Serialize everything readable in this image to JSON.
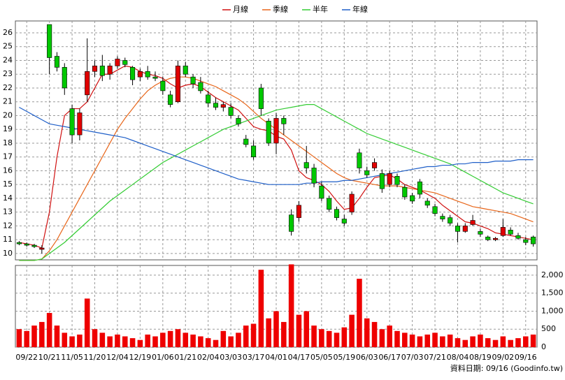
{
  "chart_data": {
    "type": "candlestick",
    "categories": [
      null,
      "09/22",
      null,
      null,
      "10/21",
      null,
      null,
      "11/05",
      null,
      null,
      "11/20",
      null,
      null,
      "12/04",
      null,
      null,
      "12/19",
      null,
      null,
      "01/06",
      null,
      null,
      "01/21",
      null,
      null,
      "02/04",
      null,
      null,
      "03/03",
      null,
      null,
      "03/17",
      null,
      null,
      "04/01",
      null,
      null,
      "04/17",
      null,
      null,
      "05/05",
      null,
      null,
      "05/19",
      null,
      null,
      "06/03",
      null,
      null,
      "06/17",
      null,
      null,
      "07/03",
      null,
      null,
      "07/21",
      null,
      null,
      "08/04",
      null,
      null,
      "08/19",
      null,
      null,
      "09/02",
      null,
      null,
      "09/16",
      null
    ],
    "open": [
      10.8,
      10.7,
      10.6,
      10.3,
      26.6,
      24.3,
      23.5,
      20.5,
      18.6,
      21.5,
      23.2,
      23.6,
      23.0,
      23.6,
      24.0,
      23.5,
      22.8,
      23.2,
      22.8,
      22.5,
      21.5,
      21.0,
      23.6,
      22.8,
      22.4,
      21.5,
      20.9,
      20.6,
      20.6,
      19.8,
      18.3,
      17.8,
      22.0,
      19.6,
      18.0,
      19.8,
      12.8,
      12.6,
      16.6,
      16.2,
      14.9,
      14.0,
      13.2,
      12.5,
      13.0,
      17.3,
      16.0,
      16.2,
      15.8,
      15.0,
      15.6,
      14.8,
      14.2,
      15.2,
      13.8,
      13.4,
      12.7,
      12.6,
      12.0,
      11.6,
      12.1,
      11.6,
      11.2,
      11.0,
      11.3,
      11.7,
      11.3,
      11.0,
      11.2
    ],
    "high": [
      10.9,
      10.8,
      10.7,
      10.6,
      26.6,
      24.6,
      23.8,
      20.8,
      20.5,
      25.6,
      24.0,
      24.4,
      23.8,
      24.3,
      24.2,
      23.6,
      23.4,
      23.6,
      23.2,
      22.8,
      21.8,
      24.0,
      23.9,
      23.0,
      22.8,
      21.8,
      21.3,
      21.0,
      20.9,
      20.0,
      18.6,
      18.2,
      22.3,
      19.8,
      20.2,
      20.0,
      13.2,
      13.8,
      17.8,
      16.5,
      15.2,
      14.2,
      13.4,
      12.8,
      14.5,
      17.6,
      16.3,
      16.9,
      16.1,
      16.0,
      15.8,
      15.0,
      14.4,
      15.4,
      14.0,
      13.6,
      12.9,
      12.8,
      12.2,
      12.2,
      12.8,
      11.8,
      11.3,
      11.2,
      12.5,
      11.9,
      11.5,
      11.2,
      11.3
    ],
    "low": [
      10.6,
      10.5,
      10.4,
      10.0,
      23.0,
      23.2,
      21.5,
      18.0,
      18.2,
      21.0,
      22.8,
      22.5,
      22.6,
      23.4,
      23.5,
      22.2,
      22.5,
      22.6,
      22.5,
      21.5,
      20.6,
      20.9,
      22.8,
      22.0,
      21.6,
      20.6,
      20.4,
      20.3,
      19.8,
      19.2,
      17.7,
      16.8,
      20.0,
      17.8,
      17.2,
      18.6,
      11.3,
      12.3,
      15.8,
      14.8,
      13.8,
      13.0,
      12.4,
      12.0,
      12.8,
      15.8,
      15.5,
      16.0,
      14.4,
      14.8,
      14.8,
      13.9,
      13.6,
      14.0,
      13.3,
      12.7,
      12.3,
      12.0,
      10.8,
      11.5,
      12.0,
      11.2,
      10.9,
      10.9,
      11.2,
      11.3,
      11.0,
      10.6,
      10.5
    ],
    "close": [
      10.7,
      10.6,
      10.5,
      10.4,
      24.2,
      23.5,
      22.0,
      18.6,
      20.2,
      23.2,
      23.6,
      22.9,
      23.6,
      24.1,
      23.7,
      22.6,
      23.2,
      22.8,
      22.7,
      21.8,
      20.8,
      23.6,
      23.0,
      22.3,
      21.8,
      20.9,
      20.6,
      20.8,
      20.0,
      19.4,
      17.9,
      17.0,
      20.5,
      18.0,
      19.8,
      19.4,
      11.6,
      13.5,
      16.2,
      15.1,
      14.0,
      13.2,
      12.6,
      12.2,
      14.3,
      16.2,
      15.7,
      16.6,
      14.7,
      15.8,
      15.0,
      14.1,
      13.8,
      14.3,
      13.5,
      12.9,
      12.5,
      12.2,
      11.6,
      12.0,
      12.4,
      11.4,
      11.0,
      11.1,
      11.9,
      11.4,
      11.1,
      10.8,
      10.7
    ],
    "up_color": "#e00000",
    "down_color": "#00c800",
    "series": [
      {
        "name": "月線",
        "color": "#d01010",
        "values": [
          10.8,
          10.7,
          10.6,
          10.4,
          13,
          17,
          20,
          20.5,
          20.5,
          21,
          22,
          23,
          23,
          23.3,
          23.6,
          23.5,
          23.2,
          23,
          22.9,
          22.7,
          22.3,
          22,
          22.2,
          22.3,
          22.1,
          21.7,
          21.3,
          21,
          20.7,
          20.4,
          19.8,
          19.2,
          19,
          18.9,
          18.5,
          18.3,
          17.5,
          16,
          15.5,
          15.3,
          15,
          14.5,
          13.8,
          13.2,
          13.3,
          14,
          14.8,
          15.5,
          15.6,
          15.7,
          15.4,
          15,
          14.8,
          14.6,
          14.3,
          14,
          13.5,
          13.1,
          12.7,
          12.3,
          12.2,
          12,
          11.8,
          11.5,
          11.4,
          11.3,
          11.2,
          11.1,
          11.0
        ]
      },
      {
        "name": "季線",
        "color": "#e8661a",
        "values": [
          9.5,
          9.5,
          9.5,
          9.6,
          10.2,
          11,
          12,
          13,
          14,
          15,
          16,
          17,
          18,
          19,
          19.8,
          20.5,
          21.2,
          21.8,
          22.2,
          22.5,
          22.7,
          22.8,
          22.8,
          22.7,
          22.5,
          22.3,
          22.1,
          21.8,
          21.5,
          21.2,
          20.8,
          20.3,
          19.8,
          19.4,
          19,
          18.6,
          18.2,
          17.8,
          17.4,
          17,
          16.6,
          16.2,
          15.8,
          15.5,
          15.3,
          15.2,
          15.1,
          15,
          14.9,
          14.9,
          14.9,
          14.8,
          14.7,
          14.6,
          14.5,
          14.4,
          14.2,
          14,
          13.8,
          13.6,
          13.4,
          13.3,
          13.2,
          13.1,
          13,
          12.9,
          12.7,
          12.5,
          12.3
        ]
      },
      {
        "name": "半年",
        "color": "#33cc33",
        "values": [
          9.5,
          9.5,
          9.5,
          9.6,
          10.0,
          10.4,
          10.8,
          11.3,
          11.8,
          12.3,
          12.8,
          13.3,
          13.8,
          14.2,
          14.6,
          15.0,
          15.4,
          15.8,
          16.2,
          16.6,
          16.9,
          17.2,
          17.5,
          17.8,
          18.1,
          18.4,
          18.7,
          19.0,
          19.2,
          19.4,
          19.6,
          19.8,
          20.0,
          20.2,
          20.4,
          20.5,
          20.6,
          20.7,
          20.8,
          20.8,
          20.5,
          20.2,
          19.9,
          19.6,
          19.3,
          19.0,
          18.7,
          18.5,
          18.3,
          18.1,
          17.9,
          17.7,
          17.5,
          17.3,
          17.1,
          16.9,
          16.7,
          16.5,
          16.2,
          15.9,
          15.6,
          15.3,
          15.0,
          14.7,
          14.4,
          14.2,
          14.0,
          13.8,
          13.6
        ]
      },
      {
        "name": "年線",
        "color": "#1f5fc8",
        "values": [
          20.6,
          20.3,
          20.0,
          19.7,
          19.4,
          19.3,
          19.2,
          19.1,
          19.0,
          18.9,
          18.8,
          18.7,
          18.6,
          18.5,
          18.4,
          18.2,
          18.0,
          17.8,
          17.6,
          17.4,
          17.2,
          17.0,
          16.8,
          16.6,
          16.4,
          16.2,
          16.0,
          15.8,
          15.6,
          15.4,
          15.3,
          15.2,
          15.1,
          15.0,
          15.0,
          15.0,
          15.0,
          15.0,
          15.1,
          15.1,
          15.2,
          15.2,
          15.2,
          15.3,
          15.3,
          15.4,
          15.5,
          15.6,
          15.7,
          15.8,
          15.9,
          16.0,
          16.1,
          16.2,
          16.3,
          16.3,
          16.4,
          16.4,
          16.5,
          16.5,
          16.6,
          16.6,
          16.6,
          16.7,
          16.7,
          16.7,
          16.8,
          16.8,
          16.8
        ]
      }
    ],
    "ylim": [
      9.54,
      26.86
    ],
    "yticks": [
      10,
      11,
      12,
      13,
      14,
      15,
      16,
      17,
      18,
      19,
      20,
      21,
      22,
      23,
      24,
      25,
      26
    ],
    "grid": true,
    "volume": {
      "color": "#ee0000",
      "values": [
        500,
        450,
        600,
        700,
        950,
        600,
        400,
        300,
        350,
        1350,
        500,
        400,
        300,
        350,
        300,
        250,
        200,
        350,
        300,
        400,
        450,
        500,
        400,
        350,
        300,
        250,
        200,
        450,
        300,
        400,
        600,
        650,
        2150,
        800,
        1000,
        700,
        2300,
        900,
        1000,
        600,
        500,
        450,
        400,
        550,
        900,
        1900,
        800,
        700,
        500,
        600,
        450,
        400,
        350,
        300,
        350,
        400,
        300,
        350,
        250,
        200,
        300,
        350,
        250,
        200,
        300,
        200,
        250,
        300,
        350
      ],
      "ylim": [
        0,
        2270
      ],
      "yticks": [
        0,
        500,
        {
          "value": 1000,
          "label": "1,000"
        },
        {
          "value": 1500,
          "label": "1,500"
        },
        {
          "value": 2000,
          "label": "2,000"
        }
      ]
    },
    "footer": "資料日期: 09/16 (Goodinfo.tw)"
  }
}
